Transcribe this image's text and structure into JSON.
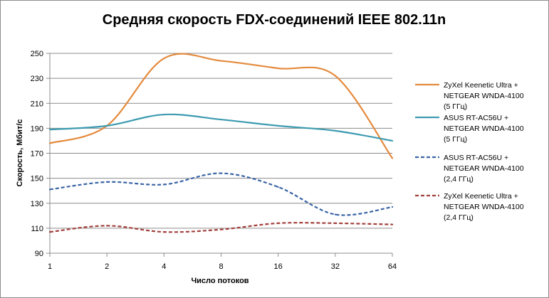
{
  "chart_data": {
    "type": "line",
    "title": "Средняя скорость FDX-соединений IEEE 802.11n",
    "xlabel": "Число потоков",
    "ylabel": "Скорость, Мбит/с",
    "x": [
      1,
      2,
      4,
      8,
      16,
      32,
      64
    ],
    "x_tick_labels": [
      "1",
      "2",
      "4",
      "8",
      "16",
      "32",
      "64"
    ],
    "x_scale": "log2",
    "ylim": [
      90,
      250
    ],
    "y_ticks": [
      90,
      110,
      130,
      150,
      170,
      190,
      210,
      230,
      250
    ],
    "grid": "horizontal",
    "legend_position": "right",
    "series": [
      {
        "name_lines": [
          "ZyXel Keenetic Ultra +",
          "NETGEAR WNDA-4100",
          "(5 ГГц)"
        ],
        "color": "#e48a3c",
        "dash": "solid",
        "values": [
          178,
          192,
          246,
          244,
          238,
          232,
          166
        ]
      },
      {
        "name_lines": [
          "ASUS RT-AC56U +",
          "NETGEAR WNDA-4100",
          "(5 ГГц)"
        ],
        "color": "#3d9bb0",
        "dash": "solid",
        "values": [
          189,
          192,
          201,
          197,
          192,
          188,
          180
        ]
      },
      {
        "name_lines": [
          "ASUS RT-AC56U +",
          "NETGEAR WNDA-4100",
          "(2,4 ГГц)"
        ],
        "color": "#3a64a6",
        "dash": "dashed",
        "values": [
          141,
          147,
          145,
          154,
          143,
          121,
          127
        ]
      },
      {
        "name_lines": [
          "ZyXel Keenetic Ultra +",
          "NETGEAR WNDA-4100",
          "(2,4 ГГц)"
        ],
        "color": "#a3403c",
        "dash": "dashed",
        "values": [
          107,
          112,
          107,
          109,
          114,
          114,
          113
        ]
      }
    ]
  }
}
